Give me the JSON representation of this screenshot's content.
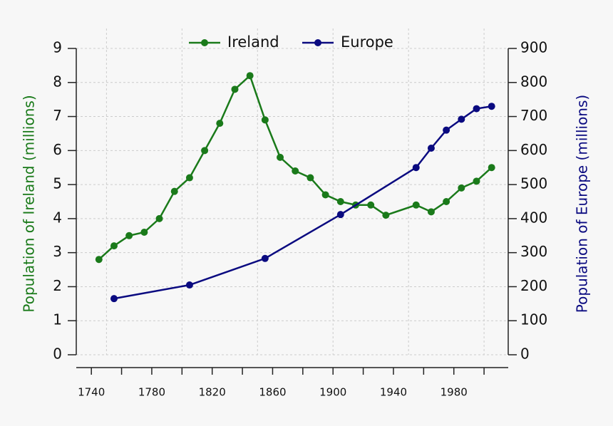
{
  "chart_data": {
    "type": "line",
    "x_ireland": [
      1745,
      1755,
      1765,
      1775,
      1785,
      1795,
      1805,
      1815,
      1825,
      1835,
      1845,
      1855,
      1865,
      1875,
      1885,
      1895,
      1905,
      1915,
      1925,
      1935,
      1955,
      1965,
      1975,
      1985,
      1995,
      2005
    ],
    "series": [
      {
        "name": "Ireland",
        "color": "#1a7a1a",
        "x": [
          1745,
          1755,
          1765,
          1775,
          1785,
          1795,
          1805,
          1815,
          1825,
          1835,
          1845,
          1855,
          1865,
          1875,
          1885,
          1895,
          1905,
          1915,
          1925,
          1935,
          1955,
          1965,
          1975,
          1985,
          1995,
          2005
        ],
        "values": [
          2.8,
          3.2,
          3.5,
          3.6,
          4.0,
          4.8,
          5.2,
          6.0,
          6.8,
          7.8,
          8.2,
          6.9,
          5.8,
          5.4,
          5.2,
          4.7,
          4.5,
          4.4,
          4.4,
          4.1,
          4.4,
          4.2,
          4.5,
          4.9,
          5.1,
          5.5
        ]
      },
      {
        "name": "Europe",
        "color": "#0a0a80",
        "axis": "y2",
        "x": [
          1755,
          1805,
          1855,
          1905,
          1955,
          1965,
          1975,
          1985,
          1995,
          2005
        ],
        "values": [
          165,
          205,
          283,
          412,
          550,
          607,
          660,
          692,
          723,
          730
        ]
      }
    ],
    "ylabel": "Population of Ireland (millions)",
    "y2label": "Population of Europe (millions)",
    "xlim": [
      1730,
      2016
    ],
    "ylim": [
      0,
      9
    ],
    "yticks": [
      0,
      1,
      2,
      3,
      4,
      5,
      6,
      7,
      8,
      9
    ],
    "y2lim": [
      0,
      900
    ],
    "y2ticks": [
      0,
      100,
      200,
      300,
      400,
      500,
      600,
      700,
      800,
      900
    ],
    "xticks": [
      1740,
      1780,
      1820,
      1860,
      1900,
      1940,
      1980
    ],
    "xminorticks": [
      1760,
      1800,
      1840,
      1880,
      1920,
      1960,
      2000
    ],
    "xgrid": [
      1750,
      1800,
      1850,
      1900,
      1950,
      2000
    ],
    "grid": true
  }
}
